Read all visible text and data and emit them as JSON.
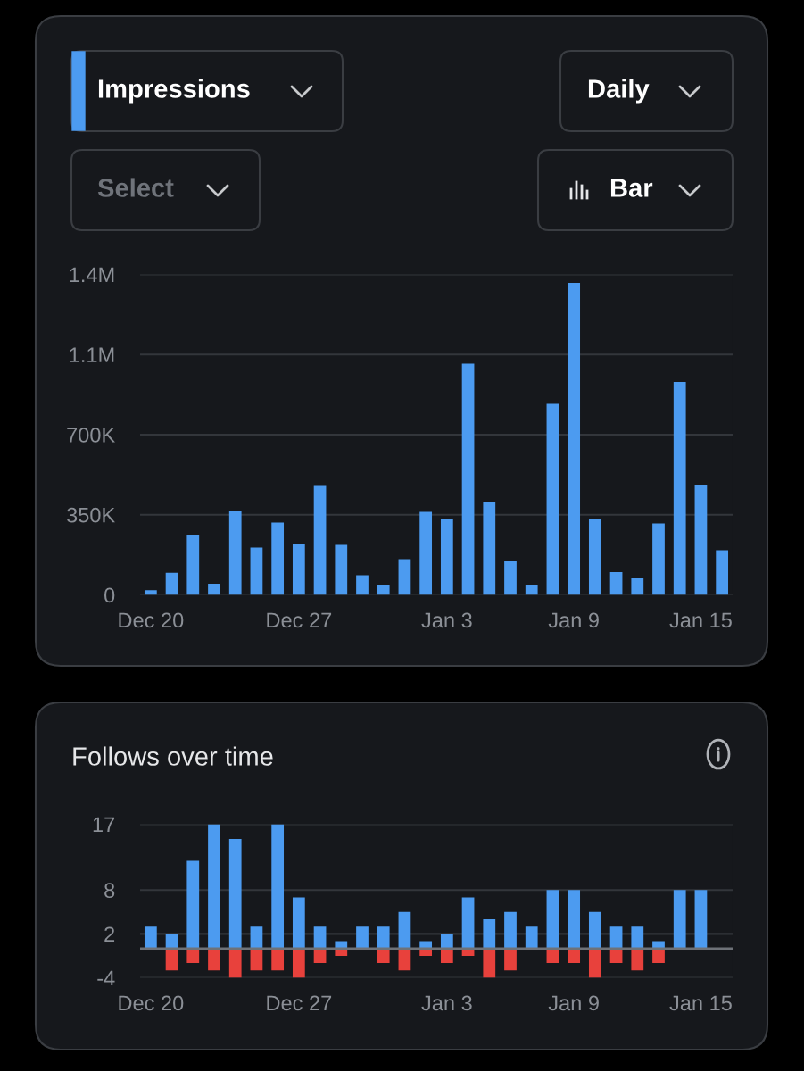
{
  "chart_data": [
    {
      "type": "bar",
      "annotations": [
        "Impressions",
        "Daily",
        "Select",
        "Bar"
      ],
      "categories": [
        "Dec 20",
        null,
        null,
        null,
        null,
        null,
        null,
        "Dec 27",
        null,
        null,
        null,
        null,
        null,
        null,
        "Jan 3",
        null,
        null,
        null,
        null,
        null,
        "Jan 9",
        null,
        null,
        null,
        null,
        null,
        "Jan 15",
        null
      ],
      "values": [
        20000,
        97000,
        260000,
        49000,
        365000,
        207000,
        316000,
        222000,
        480000,
        218000,
        86000,
        43000,
        156000,
        363000,
        330000,
        1010000,
        408000,
        146000,
        43000,
        835000,
        1363000,
        332000,
        99000,
        72000,
        312000,
        930000,
        482000,
        195000
      ],
      "color": "#4c9bf0",
      "ylim": [
        0,
        1400000
      ],
      "yticks": [
        0,
        {
          "value": 350000,
          "label": "350K"
        },
        {
          "value": 700000,
          "label": "700K"
        },
        {
          "value": 1050000,
          "label": "1.1M"
        },
        {
          "value": 1400000,
          "label": "1.4M"
        }
      ],
      "grid": "y"
    },
    {
      "type": "bar",
      "title": "Follows over time",
      "stacked": true,
      "categories": [
        "Dec 20",
        null,
        null,
        null,
        null,
        null,
        null,
        "Dec 27",
        null,
        null,
        null,
        null,
        null,
        null,
        "Jan 3",
        null,
        null,
        null,
        null,
        null,
        "Jan 9",
        null,
        null,
        null,
        null,
        null,
        "Jan 15",
        null
      ],
      "series": [
        {
          "color": "#4c9bf0",
          "values": [
            3,
            2,
            12,
            17,
            15,
            3,
            17,
            7,
            3,
            1,
            3,
            3,
            5,
            1,
            2,
            7,
            4,
            5,
            3,
            8,
            8,
            5,
            3,
            3,
            1,
            8,
            8,
            null
          ]
        },
        {
          "color": "#e8413c",
          "values": [
            null,
            -3,
            -2,
            -3,
            -4,
            -3,
            -3,
            -4,
            -2,
            -1,
            null,
            -2,
            -3,
            -1,
            -2,
            -1,
            -4,
            -3,
            null,
            -2,
            -2,
            -4,
            -2,
            -3,
            -2,
            null,
            null,
            null
          ]
        }
      ],
      "ylim": [
        -4,
        17
      ],
      "yticks": [
        -4,
        2,
        8,
        17
      ],
      "grid": "y",
      "ref_lines": [
        {
          "axis": "y",
          "value": 0,
          "color": "#6e7278"
        }
      ]
    }
  ]
}
